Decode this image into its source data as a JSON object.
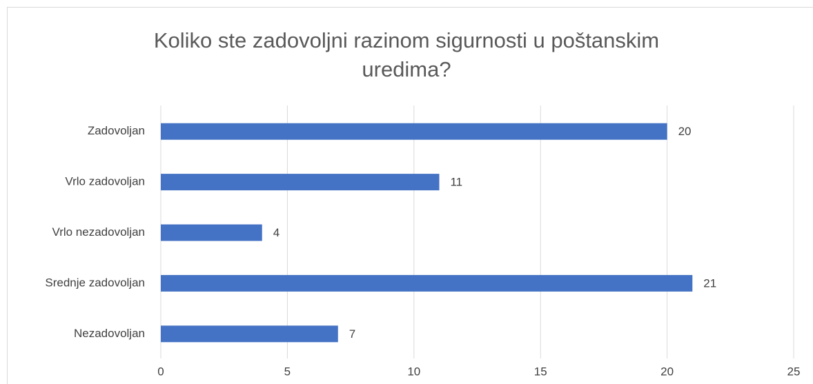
{
  "chart_data": {
    "type": "bar",
    "orientation": "horizontal",
    "title": "Koliko ste zadovoljni razinom sigurnosti u poštanskim uredima?",
    "categories": [
      "Zadovoljan",
      "Vrlo zadovoljan",
      "Vrlo nezadovoljan",
      "Srednje zadovoljan",
      "Nezadovoljan"
    ],
    "values": [
      20,
      11,
      4,
      21,
      7
    ],
    "color": "#4472c4",
    "xlim": [
      0,
      25
    ],
    "xticks": [
      0,
      5,
      10,
      15,
      20,
      25
    ],
    "grid": true
  }
}
